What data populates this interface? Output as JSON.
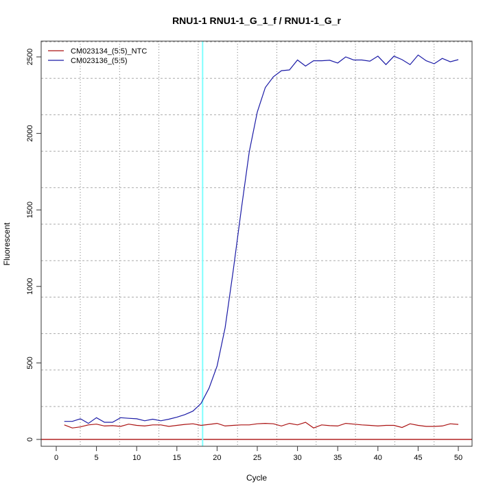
{
  "chart_data": {
    "type": "line",
    "title": "RNU1-1  RNU1-1_G_1_f / RNU1-1_G_r",
    "xlabel": "Cycle",
    "ylabel": "Fluorescent",
    "xlim": [
      -2,
      52
    ],
    "ylim": [
      -45,
      2600
    ],
    "xticks": [
      0,
      5,
      10,
      15,
      20,
      25,
      30,
      35,
      40,
      45,
      50
    ],
    "yticks": [
      0,
      500,
      1000,
      1500,
      2000,
      2500
    ],
    "grid": true,
    "legend_placement": "top-left",
    "threshold_cycle": 18.2,
    "threshold_color": "#7fffff",
    "baseline_value": 0,
    "baseline_color": "#b22222",
    "x": [
      1,
      2,
      3,
      4,
      5,
      6,
      7,
      8,
      9,
      10,
      11,
      12,
      13,
      14,
      15,
      16,
      17,
      18,
      19,
      20,
      21,
      22,
      23,
      24,
      25,
      26,
      27,
      28,
      29,
      30,
      31,
      32,
      33,
      34,
      35,
      36,
      37,
      38,
      39,
      40,
      41,
      42,
      43,
      44,
      45,
      46,
      47,
      48,
      49,
      50
    ],
    "series": [
      {
        "name": "CM023134_(5:5)_NTC",
        "color": "#aa1111",
        "values": [
          95,
          75,
          82,
          95,
          100,
          88,
          90,
          85,
          100,
          92,
          88,
          95,
          95,
          85,
          92,
          98,
          102,
          92,
          98,
          105,
          88,
          92,
          95,
          95,
          102,
          105,
          102,
          88,
          105,
          95,
          112,
          75,
          95,
          90,
          88,
          105,
          100,
          95,
          92,
          88,
          92,
          92,
          78,
          102,
          92,
          85,
          85,
          88,
          102,
          98
        ]
      },
      {
        "name": "CM023136_(5:5)",
        "color": "#1a1aa6",
        "values": [
          118,
          118,
          135,
          105,
          142,
          112,
          112,
          142,
          138,
          135,
          122,
          132,
          122,
          132,
          145,
          162,
          185,
          235,
          335,
          480,
          730,
          1100,
          1500,
          1880,
          2140,
          2300,
          2370,
          2410,
          2415,
          2480,
          2440,
          2475,
          2475,
          2478,
          2460,
          2500,
          2480,
          2480,
          2472,
          2505,
          2450,
          2505,
          2482,
          2450,
          2512,
          2475,
          2455,
          2490,
          2468,
          2482
        ]
      }
    ]
  }
}
